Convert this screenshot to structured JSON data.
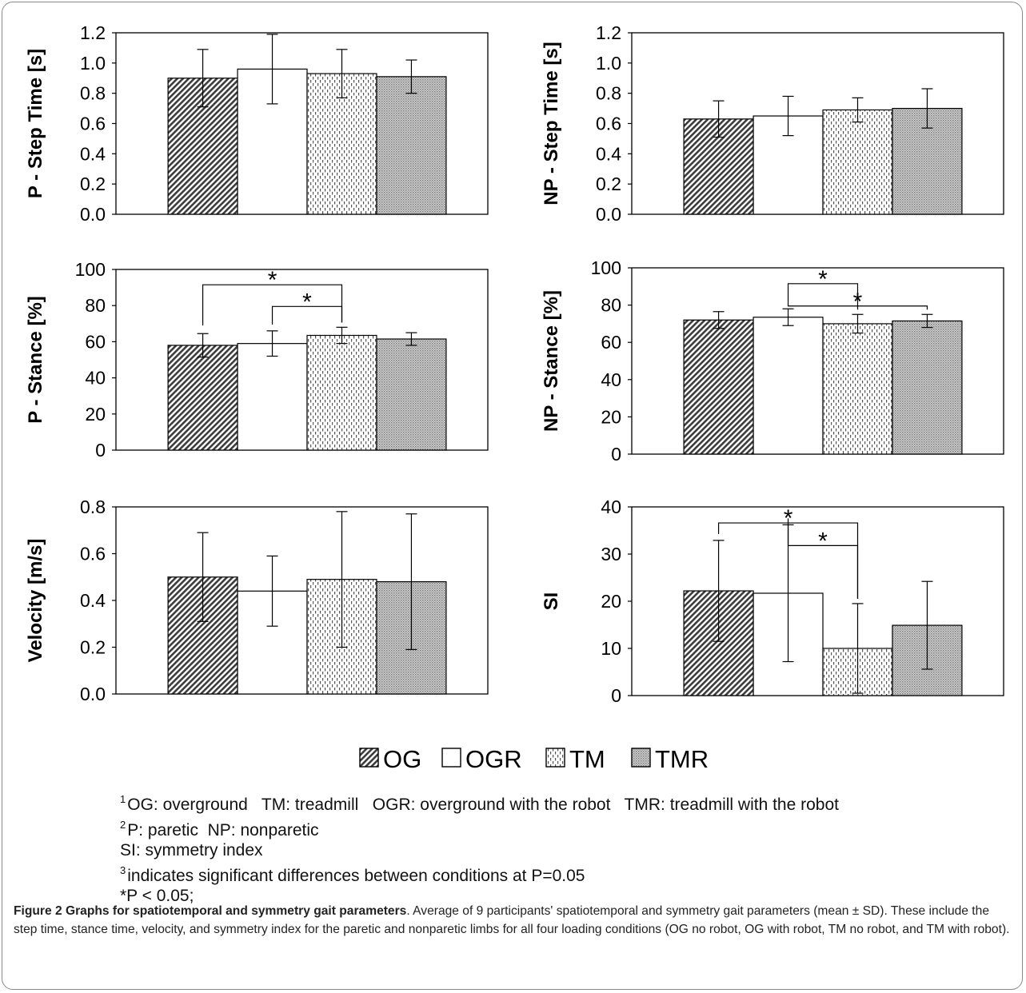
{
  "conditions": [
    "OG",
    "OGR",
    "TM",
    "TMR"
  ],
  "fills": {
    "OG": "hatch-dark",
    "OGR": "#ffffff",
    "TM": "dashes-light",
    "TMR": "dots-gray"
  },
  "chart_data": [
    {
      "type": "bar",
      "ylabel": "P - Step Time [s]",
      "categories": [
        "OG",
        "OGR",
        "TM",
        "TMR"
      ],
      "values": [
        0.9,
        0.96,
        0.93,
        0.91
      ],
      "errors": [
        0.19,
        0.23,
        0.16,
        0.11
      ],
      "ylim": [
        0,
        1.2
      ],
      "yticks": [
        "0.0",
        "0.2",
        "0.4",
        "0.6",
        "0.8",
        "1.0",
        "1.2"
      ],
      "significance": []
    },
    {
      "type": "bar",
      "ylabel": "NP - Step Time [s]",
      "categories": [
        "OG",
        "OGR",
        "TM",
        "TMR"
      ],
      "values": [
        0.63,
        0.65,
        0.69,
        0.7
      ],
      "errors": [
        0.12,
        0.13,
        0.08,
        0.13
      ],
      "ylim": [
        0,
        1.2
      ],
      "yticks": [
        "0.0",
        "0.2",
        "0.4",
        "0.6",
        "0.8",
        "1.0",
        "1.2"
      ],
      "significance": []
    },
    {
      "type": "bar",
      "ylabel": "P - Stance [%]",
      "categories": [
        "OG",
        "OGR",
        "TM",
        "TMR"
      ],
      "values": [
        58,
        59,
        63.5,
        61.5
      ],
      "errors": [
        6.5,
        7,
        4.5,
        3.5
      ],
      "ylim": [
        0,
        100
      ],
      "yticks": [
        "0",
        "20",
        "40",
        "60",
        "80",
        "100"
      ],
      "significance": [
        {
          "from": 0,
          "to": 2,
          "label": "*"
        },
        {
          "from": 1,
          "to": 2,
          "label": "*"
        }
      ]
    },
    {
      "type": "bar",
      "ylabel": "NP - Stance [%]",
      "categories": [
        "OG",
        "OGR",
        "TM",
        "TMR"
      ],
      "values": [
        72,
        73.5,
        70,
        71.5
      ],
      "errors": [
        4.5,
        4.5,
        5,
        3.5
      ],
      "ylim": [
        0,
        100
      ],
      "yticks": [
        "0",
        "20",
        "40",
        "60",
        "80",
        "100"
      ],
      "significance": [
        {
          "from": 1,
          "to": 2,
          "label": "*"
        },
        {
          "from": 1,
          "to": 3,
          "label": "*"
        }
      ]
    },
    {
      "type": "bar",
      "ylabel": "Velocity [m/s]",
      "categories": [
        "OG",
        "OGR",
        "TM",
        "TMR"
      ],
      "values": [
        0.5,
        0.44,
        0.49,
        0.48
      ],
      "errors": [
        0.19,
        0.15,
        0.29,
        0.29
      ],
      "ylim": [
        0,
        0.8
      ],
      "yticks": [
        "0.0",
        "0.2",
        "0.4",
        "0.6",
        "0.8"
      ],
      "significance": []
    },
    {
      "type": "bar",
      "ylabel": "SI",
      "categories": [
        "OG",
        "OGR",
        "TM",
        "TMR"
      ],
      "values": [
        22.2,
        21.7,
        10.0,
        14.9
      ],
      "errors": [
        10.7,
        14.5,
        9.5,
        9.3
      ],
      "ylim": [
        0,
        40
      ],
      "yticks": [
        "0",
        "10",
        "20",
        "30",
        "40"
      ],
      "significance": [
        {
          "from": 0,
          "to": 2,
          "label": "*"
        },
        {
          "from": 1,
          "to": 2,
          "label": "*"
        }
      ]
    }
  ],
  "footnotes": [
    {
      "sup": "1",
      "text": "OG: overground   TM: treadmill   OGR: overground with the robot   TMR: treadmill with the robot"
    },
    {
      "sup": "2",
      "text": "P: paretic  NP: nonparetic"
    },
    {
      "sup": "",
      "text": "SI: symmetry index"
    },
    {
      "sup": "3",
      "text": "indicates significant differences between conditions at P=0.05"
    },
    {
      "sup": "",
      "text": "*P < 0.05;"
    }
  ],
  "caption": {
    "title": "Figure 2 Graphs for spatiotemporal and symmetry gait parameters",
    "body": ". Average of 9 participants' spatiotemporal and symmetry gait parameters (mean ± SD). These include the step time, stance time, velocity, and symmetry index for the paretic and nonparetic limbs for all four loading conditions (OG no robot, OG with robot, TM no robot, and TM with robot)."
  }
}
